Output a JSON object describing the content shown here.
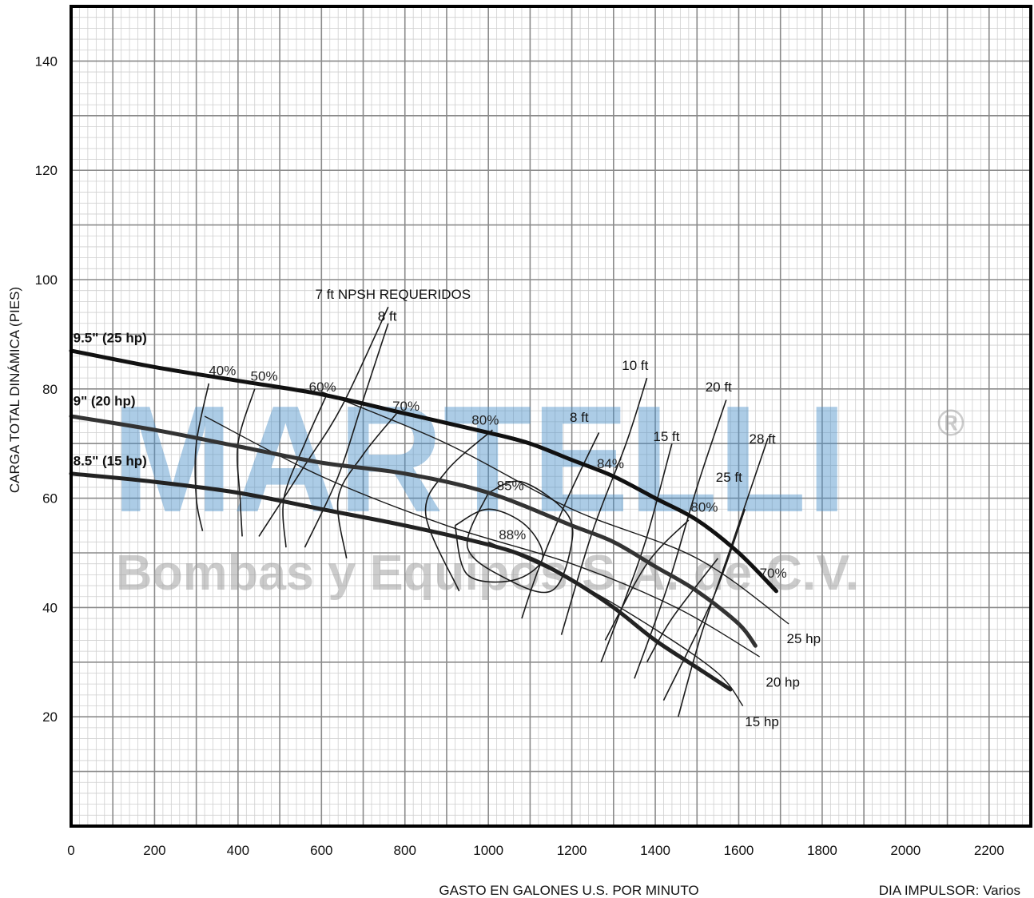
{
  "chart_data": {
    "type": "line",
    "xlabel": "GASTO EN GALONES U.S. POR MINUTO",
    "ylabel": "CARGA TOTAL DINÁMICA (PIES)",
    "footnote": "DIA IMPULSOR: Varios",
    "xlim": [
      0,
      2300
    ],
    "ylim": [
      0,
      150
    ],
    "x_ticks": [
      "0",
      "200",
      "400",
      "600",
      "800",
      "1000",
      "1200",
      "1400",
      "1600",
      "1800",
      "2000",
      "2200"
    ],
    "y_ticks": [
      "20",
      "40",
      "60",
      "80",
      "100",
      "120",
      "140"
    ],
    "grid": true,
    "watermark": {
      "logo_text": "MARTELLI",
      "subtitle": "Bombas y Equipos S.A. de C.V.",
      "registered": "®"
    },
    "impeller_curves": [
      {
        "name": "9.5\" (25 hp)",
        "color": "#111111",
        "points": [
          [
            0,
            87
          ],
          [
            200,
            84
          ],
          [
            400,
            81.5
          ],
          [
            600,
            79
          ],
          [
            800,
            75.5
          ],
          [
            1000,
            72
          ],
          [
            1100,
            70
          ],
          [
            1200,
            67
          ],
          [
            1300,
            64
          ],
          [
            1400,
            60
          ],
          [
            1500,
            56
          ],
          [
            1600,
            50
          ],
          [
            1690,
            43
          ]
        ]
      },
      {
        "name": "9\" (20 hp)",
        "color": "#333333",
        "points": [
          [
            0,
            75
          ],
          [
            200,
            72.5
          ],
          [
            400,
            69.5
          ],
          [
            600,
            66.5
          ],
          [
            800,
            64.5
          ],
          [
            1000,
            61
          ],
          [
            1200,
            55
          ],
          [
            1300,
            52
          ],
          [
            1400,
            47.5
          ],
          [
            1500,
            43
          ],
          [
            1600,
            37
          ],
          [
            1640,
            33
          ]
        ]
      },
      {
        "name": "8.5\" (15 hp)",
        "color": "#222222",
        "points": [
          [
            0,
            64.5
          ],
          [
            200,
            63
          ],
          [
            400,
            61
          ],
          [
            600,
            58
          ],
          [
            800,
            55
          ],
          [
            1000,
            51.5
          ],
          [
            1100,
            49
          ],
          [
            1200,
            45
          ],
          [
            1300,
            40
          ],
          [
            1400,
            34
          ],
          [
            1500,
            29
          ],
          [
            1580,
            25
          ]
        ]
      }
    ],
    "power_lines": [
      {
        "name": "25 hp",
        "points": [
          [
            600,
            79.5
          ],
          [
            900,
            70
          ],
          [
            1200,
            58
          ],
          [
            1500,
            49
          ],
          [
            1720,
            37
          ]
        ]
      },
      {
        "name": "20 hp",
        "points": [
          [
            320,
            75
          ],
          [
            600,
            64
          ],
          [
            900,
            55
          ],
          [
            1200,
            48
          ],
          [
            1450,
            40
          ],
          [
            1650,
            31
          ]
        ]
      },
      {
        "name": "15 hp",
        "points": [
          [
            1000,
            52
          ],
          [
            1200,
            45
          ],
          [
            1400,
            36
          ],
          [
            1550,
            28
          ],
          [
            1610,
            22
          ]
        ]
      }
    ],
    "power_labels": [
      {
        "text": "25 hp",
        "x": 1715,
        "y": 33.5
      },
      {
        "text": "20 hp",
        "x": 1665,
        "y": 25.5
      },
      {
        "text": "15 hp",
        "x": 1615,
        "y": 18.3
      }
    ],
    "efficiency_lines": [
      {
        "name": "40%",
        "points": [
          [
            330,
            81
          ],
          [
            300,
            70
          ],
          [
            300,
            60
          ],
          [
            315,
            54
          ]
        ]
      },
      {
        "name": "50%",
        "points": [
          [
            440,
            80
          ],
          [
            400,
            70
          ],
          [
            405,
            60
          ],
          [
            410,
            53
          ]
        ]
      },
      {
        "name": "60%",
        "points": [
          [
            610,
            78.5
          ],
          [
            560,
            70
          ],
          [
            510,
            60
          ],
          [
            515,
            51
          ]
        ]
      },
      {
        "name": "70%",
        "points": [
          [
            780,
            75.5
          ],
          [
            700,
            68
          ],
          [
            640,
            60
          ],
          [
            660,
            49
          ]
        ]
      },
      {
        "name": "80%",
        "points": [
          [
            1010,
            72.5
          ],
          [
            900,
            65
          ],
          [
            850,
            57
          ],
          [
            930,
            43
          ]
        ]
      },
      {
        "name": "80%",
        "points": [
          [
            1480,
            56
          ],
          [
            1380,
            48
          ],
          [
            1280,
            34
          ]
        ]
      },
      {
        "name": "70%",
        "points": [
          [
            1550,
            49
          ],
          [
            1440,
            38
          ],
          [
            1380,
            30
          ]
        ]
      }
    ],
    "efficiency_labels": [
      {
        "text": "40%",
        "x": 330,
        "y": 82.5
      },
      {
        "text": "50%",
        "x": 430,
        "y": 81.5
      },
      {
        "text": "60%",
        "x": 570,
        "y": 79.5
      },
      {
        "text": "70%",
        "x": 770,
        "y": 76
      },
      {
        "text": "80%",
        "x": 960,
        "y": 73.5
      },
      {
        "text": "84%",
        "x": 1260,
        "y": 65.5
      },
      {
        "text": "85%",
        "x": 1020,
        "y": 61.5
      },
      {
        "text": "88%",
        "x": 1025,
        "y": 52.5
      },
      {
        "text": "80%",
        "x": 1485,
        "y": 57.5
      },
      {
        "text": "70%",
        "x": 1650,
        "y": 45.5
      }
    ],
    "efficiency_islands": [
      {
        "name": "85%",
        "points": [
          [
            1000,
            61
          ],
          [
            1080,
            63
          ],
          [
            1190,
            57
          ],
          [
            1195,
            50
          ],
          [
            1150,
            43
          ],
          [
            1050,
            45
          ],
          [
            950,
            51
          ],
          [
            1000,
            61
          ]
        ]
      },
      {
        "name": "88%",
        "points": [
          [
            920,
            55
          ],
          [
            1000,
            58
          ],
          [
            1090,
            55
          ],
          [
            1130,
            49
          ],
          [
            1060,
            45
          ],
          [
            950,
            46
          ],
          [
            920,
            55
          ]
        ]
      }
    ],
    "npsh_lines": [
      {
        "name": "7 ft NPSH REQUERIDOS",
        "points": [
          [
            760,
            95
          ],
          [
            650,
            77
          ],
          [
            560,
            66
          ],
          [
            450,
            53
          ]
        ]
      },
      {
        "name": "8 ft",
        "points": [
          [
            760,
            92
          ],
          [
            700,
            78
          ],
          [
            640,
            64
          ],
          [
            560,
            51
          ]
        ]
      },
      {
        "name": "8 ft",
        "points": [
          [
            1265,
            72
          ],
          [
            1190,
            60
          ],
          [
            1120,
            47
          ],
          [
            1080,
            38
          ]
        ]
      },
      {
        "name": "10 ft",
        "points": [
          [
            1380,
            82
          ],
          [
            1330,
            70
          ],
          [
            1250,
            54
          ],
          [
            1175,
            35
          ]
        ]
      },
      {
        "name": "15 ft",
        "points": [
          [
            1440,
            70
          ],
          [
            1380,
            53
          ],
          [
            1330,
            42
          ],
          [
            1270,
            30
          ]
        ]
      },
      {
        "name": "20 ft",
        "points": [
          [
            1570,
            78
          ],
          [
            1500,
            62
          ],
          [
            1430,
            44
          ],
          [
            1350,
            27
          ]
        ]
      },
      {
        "name": "25 ft",
        "points": [
          [
            1615,
            58
          ],
          [
            1540,
            42
          ],
          [
            1420,
            23
          ]
        ]
      },
      {
        "name": "28 ft",
        "points": [
          [
            1670,
            71
          ],
          [
            1590,
            53
          ],
          [
            1510,
            35
          ],
          [
            1455,
            20
          ]
        ]
      }
    ],
    "npsh_labels": [
      {
        "text": "7 ft NPSH REQUERIDOS",
        "x": 585,
        "y": 96.5
      },
      {
        "text": "8 ft",
        "x": 735,
        "y": 92.5
      },
      {
        "text": "10 ft",
        "x": 1320,
        "y": 83.5
      },
      {
        "text": "8 ft",
        "x": 1195,
        "y": 74
      },
      {
        "text": "20 ft",
        "x": 1520,
        "y": 79.5
      },
      {
        "text": "15 ft",
        "x": 1395,
        "y": 70.5
      },
      {
        "text": "28 ft",
        "x": 1625,
        "y": 70
      },
      {
        "text": "25 ft",
        "x": 1545,
        "y": 63
      }
    ],
    "impeller_labels": [
      {
        "text": "9.5\" (25 hp)",
        "x": 5,
        "y": 88.5
      },
      {
        "text": "9\" (20 hp)",
        "x": 5,
        "y": 77
      },
      {
        "text": "8.5\" (15 hp)",
        "x": 5,
        "y": 66
      }
    ]
  }
}
